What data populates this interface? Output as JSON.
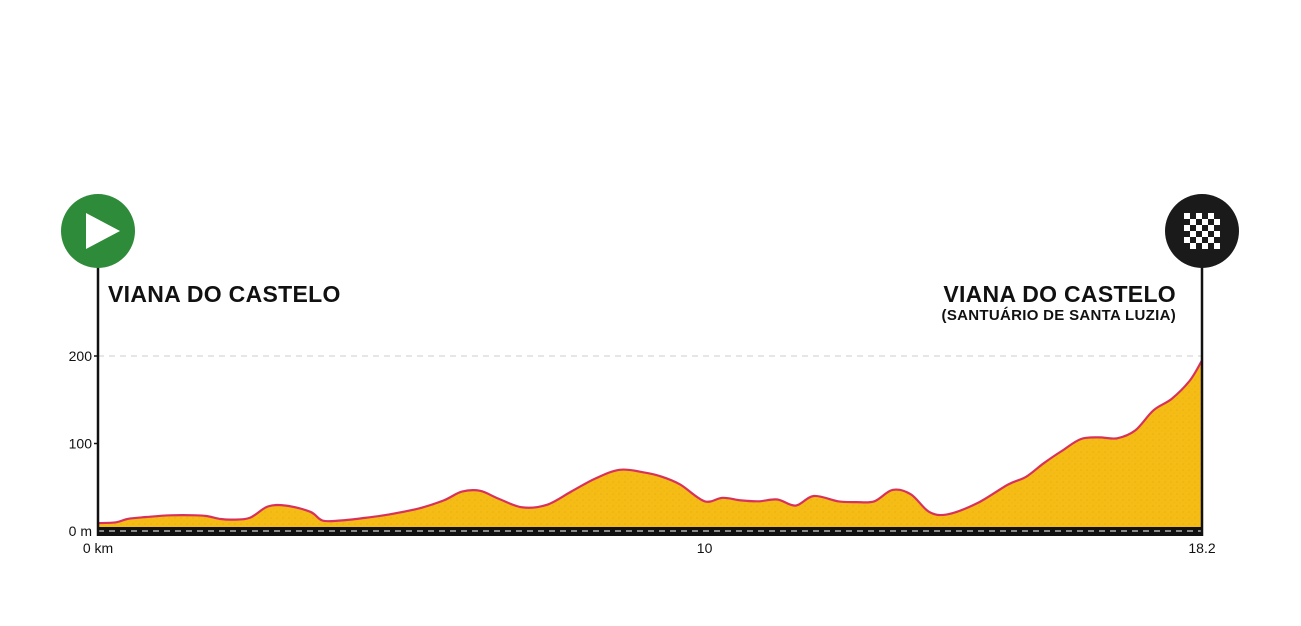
{
  "colors": {
    "fill": "#F5BC16",
    "outline": "#D8315B",
    "start_marker": "#2E8B3A",
    "finish_marker": "#1A1A1A",
    "axis": "#111111",
    "grid": "#CCCCCC"
  },
  "start": {
    "name": "VIANA DO CASTELO",
    "icon": "play-icon"
  },
  "finish": {
    "name": "VIANA DO CASTELO",
    "subname": "(SANTUÁRIO DE SANTA LUZIA)",
    "icon": "checkered-flag-icon"
  },
  "chart_data": {
    "type": "area",
    "title": "",
    "xlabel": "",
    "ylabel": "",
    "xlim": [
      0,
      18.2
    ],
    "ylim": [
      0,
      200
    ],
    "x_ticks": [
      {
        "value": 0,
        "label": "0 km"
      },
      {
        "value": 10,
        "label": "10"
      },
      {
        "value": 18.2,
        "label": "18.2"
      }
    ],
    "y_ticks": [
      {
        "value": 0,
        "label": "0 m"
      },
      {
        "value": 100,
        "label": "100"
      },
      {
        "value": 200,
        "label": "200"
      }
    ],
    "grid": "dashed line at 200",
    "x": [
      0,
      0.3,
      0.5,
      0.8,
      1.2,
      1.6,
      1.8,
      2.0,
      2.2,
      2.5,
      2.8,
      3.1,
      3.5,
      3.7,
      4.0,
      4.4,
      4.8,
      5.3,
      5.7,
      6.0,
      6.3,
      6.6,
      7.0,
      7.4,
      7.8,
      8.2,
      8.6,
      9.0,
      9.3,
      9.6,
      10.0,
      10.3,
      10.6,
      10.9,
      11.2,
      11.5,
      11.8,
      12.2,
      12.5,
      12.8,
      13.1,
      13.4,
      13.7,
      14.0,
      14.5,
      15.0,
      15.3,
      15.6,
      15.9,
      16.2,
      16.5,
      16.8,
      17.1,
      17.4,
      17.7,
      18.0,
      18.2
    ],
    "y": [
      9,
      10,
      14,
      16,
      18,
      18,
      17,
      14,
      13,
      15,
      28,
      29,
      22,
      12,
      12,
      15,
      19,
      26,
      35,
      45,
      46,
      37,
      27,
      30,
      45,
      60,
      70,
      67,
      62,
      53,
      34,
      38,
      35,
      34,
      36,
      29,
      40,
      34,
      33,
      34,
      47,
      42,
      22,
      19,
      32,
      53,
      62,
      78,
      92,
      105,
      107,
      106,
      115,
      138,
      151,
      172,
      195
    ]
  }
}
